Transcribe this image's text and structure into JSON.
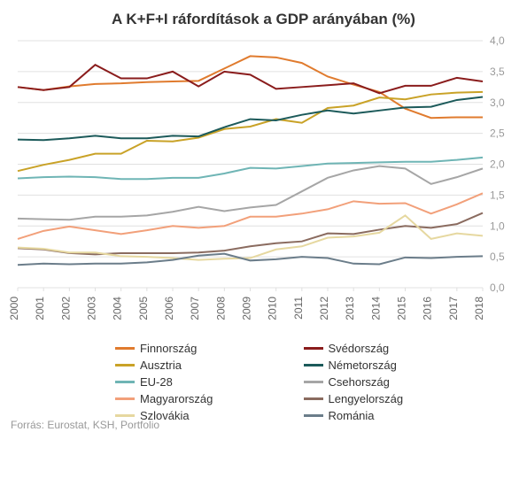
{
  "chart": {
    "title": "A K+F+I ráfordítások a GDP arányában (%)",
    "source": "Forrás: Eurostat, KSH, Portfolio",
    "type": "line",
    "background_color": "#ffffff",
    "grid_color": "#e0e0e0",
    "title_fontsize": 17,
    "title_color": "#333333",
    "label_fontsize": 12,
    "axis_label_color": "#999999",
    "x_axis_label_color": "#666666",
    "years": [
      2000,
      2001,
      2002,
      2003,
      2004,
      2005,
      2006,
      2007,
      2008,
      2009,
      2010,
      2011,
      2012,
      2013,
      2014,
      2015,
      2016,
      2017,
      2018
    ],
    "ylim": [
      0.0,
      4.0
    ],
    "ytick_step": 0.5,
    "line_width": 2,
    "highlight_line_width": 3,
    "series": [
      {
        "name": "Finnország",
        "color": "#e07b2e",
        "highlight": false,
        "values": [
          3.25,
          3.2,
          3.26,
          3.3,
          3.31,
          3.33,
          3.34,
          3.35,
          3.55,
          3.75,
          3.73,
          3.64,
          3.42,
          3.29,
          3.17,
          2.9,
          2.75,
          2.76,
          2.76
        ]
      },
      {
        "name": "Svédország",
        "color": "#8a1c1c",
        "highlight": false,
        "values": [
          3.25,
          3.2,
          3.25,
          3.61,
          3.39,
          3.39,
          3.5,
          3.26,
          3.5,
          3.45,
          3.22,
          3.25,
          3.28,
          3.31,
          3.15,
          3.27,
          3.27,
          3.4,
          3.34
        ]
      },
      {
        "name": "Ausztria",
        "color": "#c9a227",
        "highlight": false,
        "values": [
          1.89,
          1.99,
          2.07,
          2.17,
          2.17,
          2.38,
          2.37,
          2.43,
          2.57,
          2.61,
          2.73,
          2.67,
          2.91,
          2.95,
          3.08,
          3.05,
          3.13,
          3.16,
          3.17
        ]
      },
      {
        "name": "Németország",
        "color": "#1c5a5a",
        "highlight": false,
        "values": [
          2.4,
          2.39,
          2.42,
          2.46,
          2.42,
          2.42,
          2.46,
          2.45,
          2.6,
          2.73,
          2.71,
          2.8,
          2.87,
          2.82,
          2.87,
          2.92,
          2.93,
          3.04,
          3.09
        ]
      },
      {
        "name": "EU-28",
        "color": "#6fb5b5",
        "highlight": false,
        "values": [
          1.77,
          1.79,
          1.8,
          1.79,
          1.76,
          1.76,
          1.78,
          1.78,
          1.85,
          1.94,
          1.93,
          1.97,
          2.01,
          2.02,
          2.03,
          2.04,
          2.04,
          2.07,
          2.11
        ]
      },
      {
        "name": "Csehország",
        "color": "#a6a6a6",
        "highlight": false,
        "values": [
          1.12,
          1.11,
          1.1,
          1.15,
          1.15,
          1.17,
          1.23,
          1.31,
          1.24,
          1.3,
          1.34,
          1.56,
          1.78,
          1.9,
          1.97,
          1.93,
          1.68,
          1.79,
          1.93
        ]
      },
      {
        "name": "Magyarország",
        "color": "#f2a07a",
        "highlight": true,
        "values": [
          0.79,
          0.92,
          0.99,
          0.93,
          0.87,
          0.93,
          1.0,
          0.97,
          1.0,
          1.15,
          1.15,
          1.2,
          1.27,
          1.4,
          1.36,
          1.37,
          1.2,
          1.35,
          1.53
        ]
      },
      {
        "name": "Lengyelország",
        "color": "#8a6b5f",
        "highlight": false,
        "values": [
          0.64,
          0.62,
          0.56,
          0.54,
          0.56,
          0.56,
          0.56,
          0.57,
          0.6,
          0.67,
          0.72,
          0.75,
          0.88,
          0.87,
          0.94,
          1.0,
          0.97,
          1.03,
          1.21
        ]
      },
      {
        "name": "Szlovákia",
        "color": "#e6d8a0",
        "highlight": false,
        "values": [
          0.65,
          0.63,
          0.57,
          0.57,
          0.51,
          0.5,
          0.48,
          0.45,
          0.47,
          0.48,
          0.62,
          0.67,
          0.81,
          0.83,
          0.89,
          1.17,
          0.79,
          0.88,
          0.84
        ]
      },
      {
        "name": "Románia",
        "color": "#6b7d8a",
        "highlight": false,
        "values": [
          0.37,
          0.39,
          0.38,
          0.39,
          0.39,
          0.41,
          0.45,
          0.52,
          0.55,
          0.44,
          0.46,
          0.5,
          0.48,
          0.39,
          0.38,
          0.49,
          0.48,
          0.5,
          0.51
        ]
      }
    ]
  }
}
